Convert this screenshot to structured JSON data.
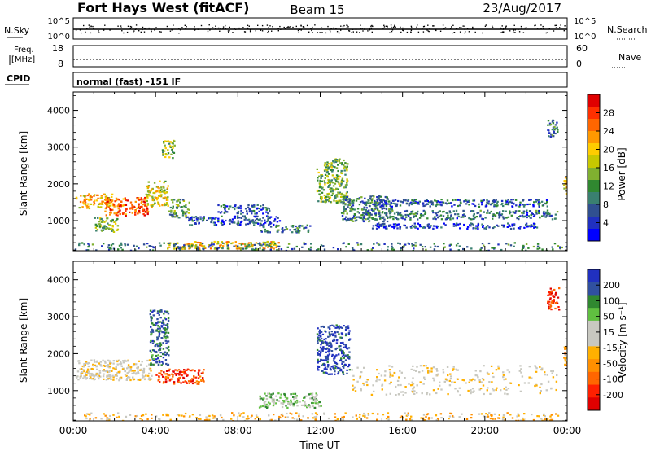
{
  "header": {
    "station": "Fort Hays West (fitACF)",
    "beam": "Beam 15",
    "date": "23/Aug/2017"
  },
  "status_panels": {
    "nsky_label": "N.Sky",
    "nsky_ticks": [
      "10^5",
      "10^0"
    ],
    "nsearch_label": "N.Search",
    "freq_label_line1": "Freq.",
    "freq_label_line2": "[MHz]",
    "freq_ticks": [
      "18",
      "8"
    ],
    "nave_label": "Nave",
    "nave_ticks": [
      "60",
      "0"
    ],
    "cpid_label": "CPID",
    "cpid_text": "normal (fast) -151 IF"
  },
  "chart_data": [
    {
      "type": "heatmap",
      "name": "power",
      "ylabel": "Slant Range [km]",
      "xlabel": "",
      "xlim": [
        "00:00",
        "24:00"
      ],
      "ylim": [
        180,
        4500
      ],
      "y_ticks": [
        1000,
        2000,
        3000,
        4000
      ],
      "colorbar": {
        "label": "Power [dB]",
        "ticks": [
          "28",
          "24",
          "20",
          "16",
          "12",
          "8",
          "4"
        ],
        "colors": [
          "#e00000",
          "#ff3000",
          "#ff6600",
          "#ff9900",
          "#ffcc00",
          "#c8c800",
          "#80b030",
          "#308830",
          "#3a8070",
          "#305090",
          "#2030c0",
          "#0000ff"
        ]
      },
      "regions": [
        {
          "t": [
            0.1,
            1.9
          ],
          "r": [
            1350,
            1750
          ],
          "level": 20
        },
        {
          "t": [
            1.5,
            3.6
          ],
          "r": [
            1150,
            1650
          ],
          "level": 25
        },
        {
          "t": [
            1.0,
            2.2
          ],
          "r": [
            700,
            1100
          ],
          "level": 14
        },
        {
          "t": [
            3.5,
            4.6
          ],
          "r": [
            1400,
            2100
          ],
          "level": 18
        },
        {
          "t": [
            4.3,
            4.9
          ],
          "r": [
            2700,
            3200
          ],
          "level": 16
        },
        {
          "t": [
            4.6,
            5.6
          ],
          "r": [
            1100,
            1600
          ],
          "level": 12
        },
        {
          "t": [
            7.0,
            9.5
          ],
          "r": [
            1200,
            1450
          ],
          "level": 8
        },
        {
          "t": [
            5.5,
            10.0
          ],
          "r": [
            900,
            1150
          ],
          "level": 7
        },
        {
          "t": [
            9.0,
            11.5
          ],
          "r": [
            700,
            900
          ],
          "level": 9
        },
        {
          "t": [
            11.8,
            13.3
          ],
          "r": [
            1500,
            2700
          ],
          "level": 14
        },
        {
          "t": [
            13.0,
            15.5
          ],
          "r": [
            1000,
            1700
          ],
          "level": 10
        },
        {
          "t": [
            14.5,
            23.0
          ],
          "r": [
            1400,
            1600
          ],
          "level": 8
        },
        {
          "t": [
            14.0,
            23.5
          ],
          "r": [
            1050,
            1300
          ],
          "level": 9
        },
        {
          "t": [
            14.5,
            22.5
          ],
          "r": [
            800,
            950
          ],
          "level": 6
        },
        {
          "t": [
            23.0,
            23.5
          ],
          "r": [
            3300,
            3800
          ],
          "level": 10
        },
        {
          "t": [
            23.8,
            24.0
          ],
          "r": [
            1700,
            2200
          ],
          "level": 18
        },
        {
          "t": [
            4.5,
            10.0
          ],
          "r": [
            250,
            450
          ],
          "level": 20
        },
        {
          "t": [
            0.0,
            24.0
          ],
          "r": [
            200,
            420
          ],
          "level": 10
        }
      ]
    },
    {
      "type": "heatmap",
      "name": "velocity",
      "ylabel": "Slant Range [km]",
      "xlabel": "Time UT",
      "xlim": [
        "00:00",
        "24:00"
      ],
      "ylim": [
        180,
        4500
      ],
      "y_ticks": [
        1000,
        2000,
        3000,
        4000
      ],
      "x_ticks": [
        "00:00",
        "04:00",
        "08:00",
        "12:00",
        "16:00",
        "20:00",
        "00:00"
      ],
      "colorbar": {
        "label": "Velocity [m s⁻¹]",
        "ticks": [
          "200",
          "100",
          "50",
          "15",
          "-15",
          "-50",
          "-100",
          "-200"
        ],
        "colors": [
          "#2030c0",
          "#3050a0",
          "#308830",
          "#60c040",
          "#c8c8c0",
          "#c8c8c0",
          "#ffb000",
          "#ff9000",
          "#ff6600",
          "#ff2000",
          "#e00000"
        ]
      },
      "regions": [
        {
          "t": [
            0.1,
            3.8
          ],
          "r": [
            1300,
            1850
          ],
          "level": 0
        },
        {
          "t": [
            4.0,
            6.3
          ],
          "r": [
            1200,
            1600
          ],
          "level": -150
        },
        {
          "t": [
            3.7,
            4.6
          ],
          "r": [
            1700,
            3200
          ],
          "level": 150
        },
        {
          "t": [
            11.8,
            13.4
          ],
          "r": [
            1450,
            2800
          ],
          "level": 180
        },
        {
          "t": [
            9.0,
            12.0
          ],
          "r": [
            550,
            950
          ],
          "level": 60
        },
        {
          "t": [
            13.5,
            23.5
          ],
          "r": [
            900,
            1700
          ],
          "level": 0
        },
        {
          "t": [
            23.0,
            23.6
          ],
          "r": [
            3200,
            3800
          ],
          "level": -150
        },
        {
          "t": [
            23.8,
            24.0
          ],
          "r": [
            1700,
            2200
          ],
          "level": -60
        },
        {
          "t": [
            0.5,
            23.8
          ],
          "r": [
            200,
            420
          ],
          "level": -40
        }
      ]
    }
  ]
}
